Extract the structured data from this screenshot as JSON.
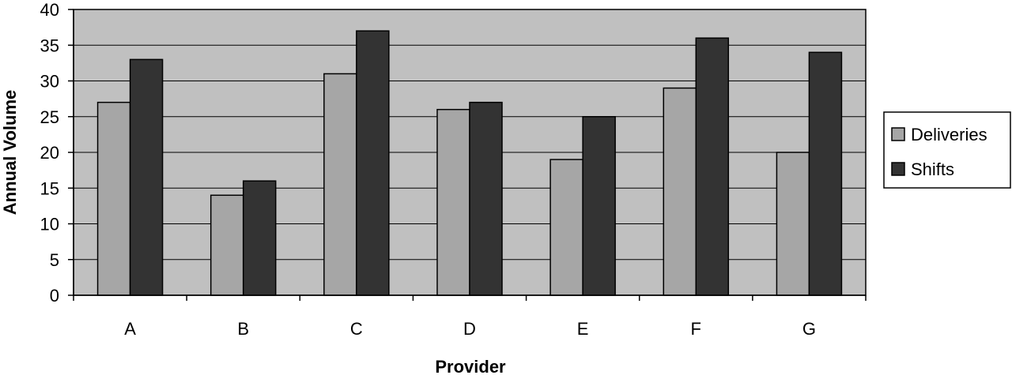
{
  "chart_data": {
    "type": "bar",
    "title": "",
    "xlabel": "Provider",
    "ylabel": "Annual Volume",
    "categories": [
      "A",
      "B",
      "C",
      "D",
      "E",
      "F",
      "G"
    ],
    "series": [
      {
        "name": "Deliveries",
        "color": "#a6a6a6",
        "values": [
          27,
          14,
          31,
          26,
          19,
          29,
          20
        ]
      },
      {
        "name": "Shifts",
        "color": "#333333",
        "values": [
          33,
          16,
          37,
          27,
          25,
          36,
          34
        ]
      }
    ],
    "ylim": [
      0,
      40
    ],
    "yticks": [
      "0",
      "5",
      "10",
      "15",
      "20",
      "25",
      "30",
      "35",
      "40"
    ],
    "grid": true,
    "plot_background": "#c0c0c0",
    "legend_position": "right"
  }
}
